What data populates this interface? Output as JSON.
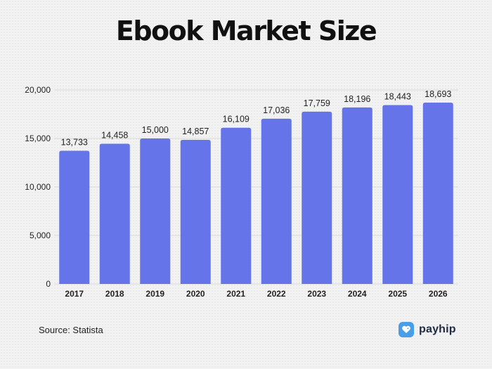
{
  "title": "Ebook Market Size",
  "source": "Source: Statista",
  "brand": {
    "name": "payhip",
    "icon": "heart-tag-icon",
    "color": "#4a9ee8"
  },
  "colors": {
    "bar": "#6574e8",
    "grid": "#d9d9d9"
  },
  "chart_data": {
    "type": "bar",
    "title": "Ebook Market Size",
    "categories": [
      "2017",
      "2018",
      "2019",
      "2020",
      "2021",
      "2022",
      "2023",
      "2024",
      "2025",
      "2026"
    ],
    "values": [
      13733,
      14458,
      15000,
      14857,
      16109,
      17036,
      17759,
      18196,
      18443,
      18693
    ],
    "value_labels": [
      "13,733",
      "14,458",
      "15,000",
      "14,857",
      "16,109",
      "17,036",
      "17,759",
      "18,196",
      "18,443",
      "18,693"
    ],
    "ylim": [
      0,
      20000
    ],
    "yticks": [
      0,
      5000,
      10000,
      15000,
      20000
    ],
    "ytick_labels": [
      "0",
      "5,000",
      "10,000",
      "15,000",
      "20,000"
    ],
    "grid": true,
    "xlabel": "",
    "ylabel": ""
  }
}
